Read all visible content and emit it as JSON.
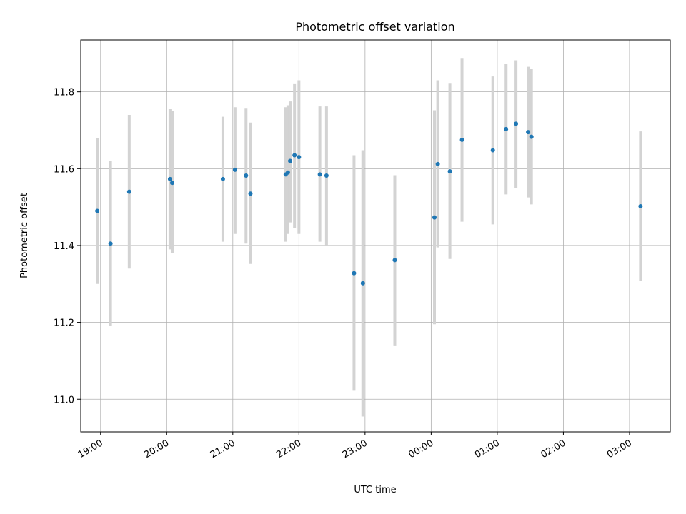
{
  "chart_data": {
    "type": "scatter",
    "title": "Photometric offset variation",
    "xlabel": "UTC time",
    "ylabel": "Photometric offset",
    "x_tick_labels": [
      "19:00",
      "20:00",
      "21:00",
      "22:00",
      "23:00",
      "00:00",
      "01:00",
      "02:00",
      "03:00"
    ],
    "y_tick_labels": [
      "11.0",
      "11.2",
      "11.4",
      "11.6",
      "11.8"
    ],
    "y_ticks": [
      11.0,
      11.2,
      11.4,
      11.6,
      11.8
    ],
    "ylim": [
      10.915,
      11.935
    ],
    "xlim": [
      "18:42",
      "03:37"
    ],
    "grid": true,
    "marker_color": "#1f77b4",
    "errorbar_color": "#d3d3d3",
    "points": [
      {
        "t": "18:57",
        "y": 11.49,
        "lo": 11.3,
        "hi": 11.68
      },
      {
        "t": "19:09",
        "y": 11.405,
        "lo": 11.19,
        "hi": 11.62
      },
      {
        "t": "19:26",
        "y": 11.54,
        "lo": 11.34,
        "hi": 11.74
      },
      {
        "t": "20:03",
        "y": 11.573,
        "lo": 11.39,
        "hi": 11.755
      },
      {
        "t": "20:05",
        "y": 11.563,
        "lo": 11.38,
        "hi": 11.75
      },
      {
        "t": "20:51",
        "y": 11.573,
        "lo": 11.41,
        "hi": 11.735
      },
      {
        "t": "21:02",
        "y": 11.597,
        "lo": 11.43,
        "hi": 11.76
      },
      {
        "t": "21:12",
        "y": 11.582,
        "lo": 11.405,
        "hi": 11.758
      },
      {
        "t": "21:16",
        "y": 11.535,
        "lo": 11.352,
        "hi": 11.72
      },
      {
        "t": "21:48",
        "y": 11.585,
        "lo": 11.41,
        "hi": 11.76
      },
      {
        "t": "21:50",
        "y": 11.59,
        "lo": 11.43,
        "hi": 11.765
      },
      {
        "t": "21:52",
        "y": 11.62,
        "lo": 11.46,
        "hi": 11.775
      },
      {
        "t": "21:56",
        "y": 11.635,
        "lo": 11.445,
        "hi": 11.822
      },
      {
        "t": "22:00",
        "y": 11.63,
        "lo": 11.43,
        "hi": 11.83
      },
      {
        "t": "22:19",
        "y": 11.585,
        "lo": 11.41,
        "hi": 11.762
      },
      {
        "t": "22:25",
        "y": 11.582,
        "lo": 11.4,
        "hi": 11.762
      },
      {
        "t": "22:50",
        "y": 11.328,
        "lo": 11.022,
        "hi": 11.635
      },
      {
        "t": "22:58",
        "y": 11.302,
        "lo": 10.955,
        "hi": 11.648
      },
      {
        "t": "23:27",
        "y": 11.362,
        "lo": 11.14,
        "hi": 11.583
      },
      {
        "t": "00:03",
        "y": 11.473,
        "lo": 11.195,
        "hi": 11.752
      },
      {
        "t": "00:06",
        "y": 11.612,
        "lo": 11.395,
        "hi": 11.83
      },
      {
        "t": "00:17",
        "y": 11.593,
        "lo": 11.365,
        "hi": 11.823
      },
      {
        "t": "00:28",
        "y": 11.675,
        "lo": 11.462,
        "hi": 11.888
      },
      {
        "t": "00:56",
        "y": 11.648,
        "lo": 11.455,
        "hi": 11.84
      },
      {
        "t": "01:08",
        "y": 11.703,
        "lo": 11.533,
        "hi": 11.873
      },
      {
        "t": "01:17",
        "y": 11.717,
        "lo": 11.55,
        "hi": 11.882
      },
      {
        "t": "01:28",
        "y": 11.695,
        "lo": 11.525,
        "hi": 11.865
      },
      {
        "t": "01:31",
        "y": 11.683,
        "lo": 11.507,
        "hi": 11.86
      },
      {
        "t": "03:10",
        "y": 11.502,
        "lo": 11.308,
        "hi": 11.697
      }
    ]
  }
}
